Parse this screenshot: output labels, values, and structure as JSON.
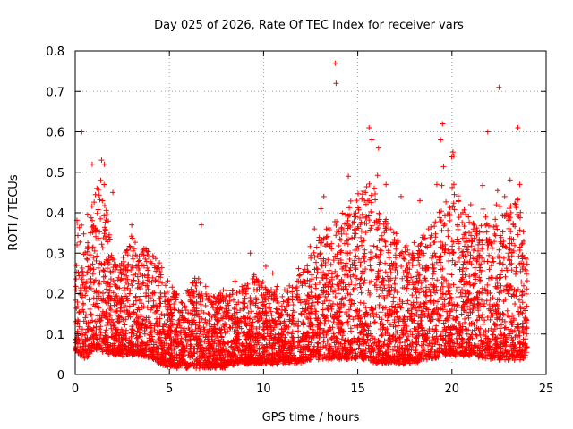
{
  "chart_data": {
    "type": "scatter",
    "title": "Day 025 of 2026, Rate Of TEC Index for receiver vars",
    "xlabel": "GPS time / hours",
    "ylabel": "ROTI / TECUs",
    "xlim": [
      0,
      25
    ],
    "ylim": [
      0,
      0.8
    ],
    "x_ticks": [
      0,
      5,
      10,
      15,
      20,
      25
    ],
    "y_ticks": [
      0,
      0.1,
      0.2,
      0.3,
      0.4,
      0.5,
      0.6,
      0.7,
      0.8
    ],
    "x_tick_labels": [
      "0",
      "5",
      "10",
      "15",
      "20",
      "25"
    ],
    "y_tick_labels": [
      "0",
      "0.1",
      "0.2",
      "0.3",
      "0.4",
      "0.5",
      "0.6",
      "0.7",
      "0.8"
    ],
    "grid": true,
    "marker": "plus",
    "series_color": "#ff0000",
    "envelope_hours": [
      0,
      0.5,
      1,
      1.5,
      2,
      2.5,
      3,
      3.5,
      4,
      4.5,
      5,
      5.5,
      6,
      6.5,
      7,
      7.5,
      8,
      8.5,
      9,
      9.5,
      10,
      10.5,
      11,
      11.5,
      12,
      12.5,
      13,
      13.5,
      14,
      14.5,
      15,
      15.5,
      16,
      16.5,
      17,
      17.5,
      18,
      18.5,
      19,
      19.5,
      20,
      20.5,
      21,
      21.5,
      22,
      22.5,
      23,
      23.5,
      24
    ],
    "envelope_upper": [
      0.4,
      0.35,
      0.45,
      0.5,
      0.3,
      0.28,
      0.35,
      0.32,
      0.3,
      0.28,
      0.22,
      0.2,
      0.22,
      0.25,
      0.2,
      0.2,
      0.22,
      0.2,
      0.22,
      0.25,
      0.22,
      0.22,
      0.2,
      0.25,
      0.25,
      0.3,
      0.35,
      0.38,
      0.38,
      0.42,
      0.45,
      0.48,
      0.45,
      0.38,
      0.35,
      0.32,
      0.3,
      0.35,
      0.38,
      0.42,
      0.48,
      0.42,
      0.38,
      0.38,
      0.4,
      0.42,
      0.42,
      0.45,
      0.3
    ],
    "envelope_lower": [
      0.06,
      0.04,
      0.06,
      0.06,
      0.05,
      0.05,
      0.05,
      0.05,
      0.04,
      0.03,
      0.02,
      0.02,
      0.02,
      0.02,
      0.02,
      0.02,
      0.02,
      0.03,
      0.03,
      0.03,
      0.03,
      0.03,
      0.03,
      0.03,
      0.03,
      0.04,
      0.04,
      0.04,
      0.04,
      0.04,
      0.04,
      0.04,
      0.03,
      0.03,
      0.03,
      0.03,
      0.03,
      0.04,
      0.04,
      0.05,
      0.05,
      0.05,
      0.05,
      0.04,
      0.04,
      0.04,
      0.04,
      0.04,
      0.04
    ],
    "outliers": [
      {
        "x": 0.35,
        "y": 0.6
      },
      {
        "x": 1.4,
        "y": 0.53
      },
      {
        "x": 1.55,
        "y": 0.52
      },
      {
        "x": 0.9,
        "y": 0.52
      },
      {
        "x": 2.0,
        "y": 0.45
      },
      {
        "x": 13.8,
        "y": 0.77
      },
      {
        "x": 13.85,
        "y": 0.72
      },
      {
        "x": 15.6,
        "y": 0.61
      },
      {
        "x": 15.75,
        "y": 0.58
      },
      {
        "x": 16.1,
        "y": 0.56
      },
      {
        "x": 19.4,
        "y": 0.58
      },
      {
        "x": 19.5,
        "y": 0.62
      },
      {
        "x": 20.05,
        "y": 0.55
      },
      {
        "x": 20.1,
        "y": 0.54
      },
      {
        "x": 22.5,
        "y": 0.71
      },
      {
        "x": 21.9,
        "y": 0.6
      },
      {
        "x": 23.5,
        "y": 0.61
      },
      {
        "x": 23.6,
        "y": 0.47
      },
      {
        "x": 13.2,
        "y": 0.44
      },
      {
        "x": 14.5,
        "y": 0.49
      },
      {
        "x": 16.5,
        "y": 0.47
      },
      {
        "x": 18.3,
        "y": 0.43
      },
      {
        "x": 19.2,
        "y": 0.47
      },
      {
        "x": 21.0,
        "y": 0.42
      },
      {
        "x": 3.0,
        "y": 0.37
      },
      {
        "x": 6.7,
        "y": 0.37
      },
      {
        "x": 9.3,
        "y": 0.3
      },
      {
        "x": 12.7,
        "y": 0.36
      },
      {
        "x": 17.3,
        "y": 0.44
      },
      {
        "x": 22.8,
        "y": 0.44
      }
    ],
    "sample_count": 5200
  }
}
